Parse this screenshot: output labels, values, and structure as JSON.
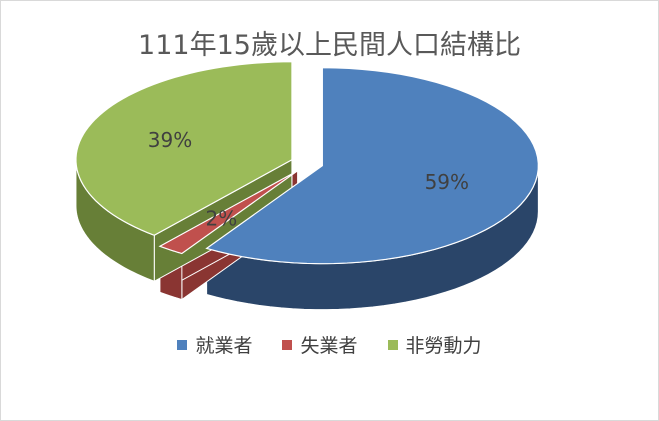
{
  "chart_data": {
    "type": "pie",
    "style": "3d-exploded",
    "title": "111年15歲以上民間人口結構比",
    "categories": [
      "就業者",
      "失業者",
      "非勞動力"
    ],
    "values": [
      59,
      2,
      39
    ],
    "data_labels": [
      "59%",
      "2%",
      "39%"
    ],
    "colors": [
      "#4f81bd",
      "#c0504d",
      "#9bbb59"
    ],
    "side_colors": [
      "#2a4569",
      "#8a3532",
      "#677f37"
    ],
    "legend_position": "bottom"
  }
}
